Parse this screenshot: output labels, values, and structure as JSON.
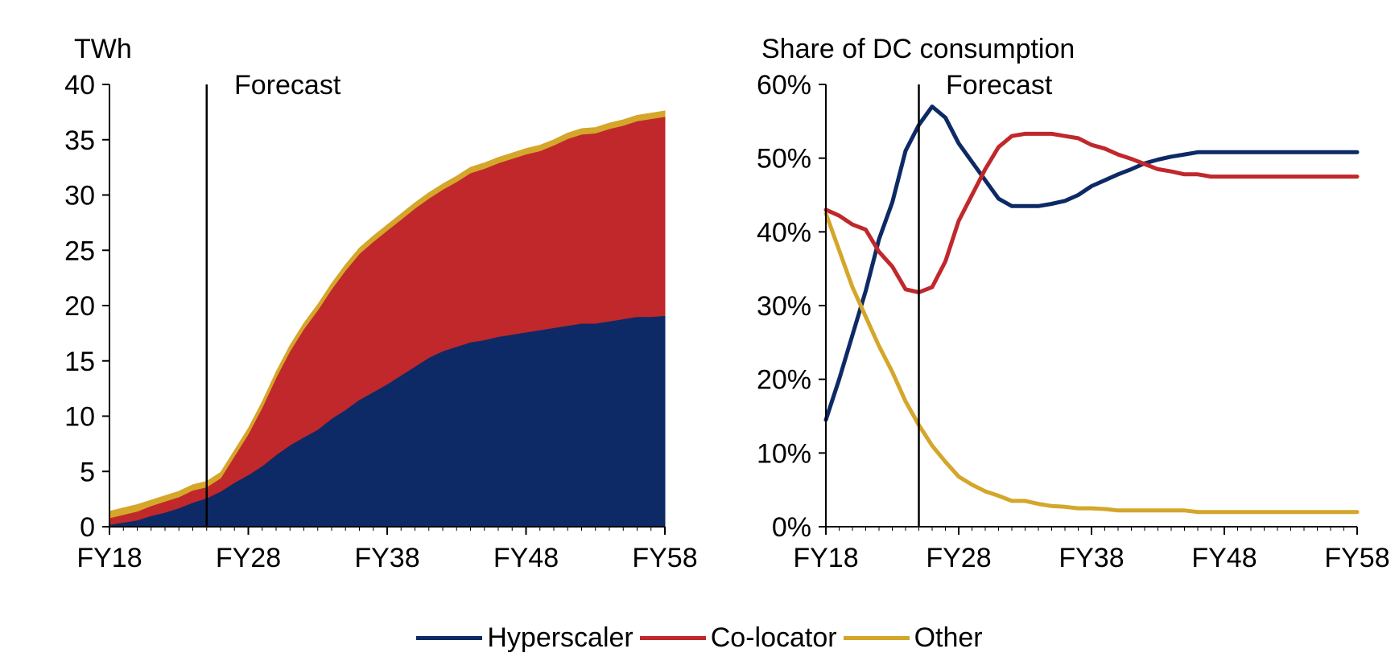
{
  "legend": [
    {
      "label": "Hyperscaler",
      "color": "#0d2a66"
    },
    {
      "label": "Co-locator",
      "color": "#c0282b"
    },
    {
      "label": "Other",
      "color": "#d4a62a"
    }
  ],
  "chart_data": [
    {
      "type": "area",
      "stacked": true,
      "ylabel": "TWh",
      "ylim": [
        0,
        40
      ],
      "yticks": [
        "0",
        "5",
        "10",
        "15",
        "20",
        "25",
        "30",
        "35",
        "40"
      ],
      "xticks": [
        "FY18",
        "FY28",
        "FY38",
        "FY48",
        "FY58"
      ],
      "forecast_label": "Forecast",
      "forecast_year": 25,
      "x_years": [
        18,
        19,
        20,
        21,
        22,
        23,
        24,
        25,
        26,
        27,
        28,
        29,
        30,
        31,
        32,
        33,
        34,
        35,
        36,
        37,
        38,
        39,
        40,
        41,
        42,
        43,
        44,
        45,
        46,
        47,
        48,
        49,
        50,
        51,
        52,
        53,
        54,
        55,
        56,
        57,
        58
      ],
      "series": [
        {
          "name": "Hyperscaler",
          "color": "#0d2a66",
          "values": [
            0.2,
            0.4,
            0.6,
            1.0,
            1.3,
            1.7,
            2.2,
            2.6,
            3.2,
            4.0,
            4.7,
            5.5,
            6.5,
            7.4,
            8.1,
            8.8,
            9.8,
            10.6,
            11.5,
            12.2,
            12.9,
            13.7,
            14.5,
            15.3,
            15.9,
            16.3,
            16.7,
            16.9,
            17.2,
            17.4,
            17.6,
            17.8,
            18.0,
            18.2,
            18.4,
            18.4,
            18.6,
            18.8,
            19.0,
            19.0,
            19.1
          ]
        },
        {
          "name": "Co-locator",
          "color": "#c0282b",
          "values": [
            0.6,
            0.7,
            0.8,
            0.9,
            1.0,
            1.0,
            1.1,
            1.0,
            1.2,
            2.4,
            3.7,
            5.3,
            7.0,
            8.5,
            9.8,
            10.8,
            11.7,
            12.6,
            13.2,
            13.6,
            13.9,
            14.1,
            14.3,
            14.4,
            14.6,
            14.9,
            15.3,
            15.5,
            15.7,
            15.9,
            16.1,
            16.2,
            16.5,
            16.9,
            17.1,
            17.2,
            17.4,
            17.5,
            17.7,
            17.9,
            18.0
          ]
        },
        {
          "name": "Other",
          "color": "#d4a62a",
          "values": [
            0.6,
            0.6,
            0.6,
            0.5,
            0.5,
            0.5,
            0.5,
            0.5,
            0.5,
            0.5,
            0.5,
            0.5,
            0.5,
            0.5,
            0.5,
            0.5,
            0.5,
            0.5,
            0.5,
            0.5,
            0.5,
            0.5,
            0.5,
            0.5,
            0.5,
            0.5,
            0.5,
            0.5,
            0.5,
            0.5,
            0.5,
            0.5,
            0.5,
            0.5,
            0.5,
            0.5,
            0.5,
            0.5,
            0.5,
            0.5,
            0.5
          ]
        }
      ]
    },
    {
      "type": "line",
      "ylabel": "Share of DC consumption",
      "ylim": [
        0,
        60
      ],
      "yticks": [
        "0%",
        "10%",
        "20%",
        "30%",
        "40%",
        "50%",
        "60%"
      ],
      "xticks": [
        "FY18",
        "FY28",
        "FY38",
        "FY48",
        "FY58"
      ],
      "forecast_label": "Forecast",
      "forecast_year": 25,
      "x_years": [
        18,
        19,
        20,
        21,
        22,
        23,
        24,
        25,
        26,
        27,
        28,
        29,
        30,
        31,
        32,
        33,
        34,
        35,
        36,
        37,
        38,
        39,
        40,
        41,
        42,
        43,
        44,
        45,
        46,
        47,
        48,
        49,
        50,
        51,
        52,
        53,
        54,
        55,
        56,
        57,
        58
      ],
      "series": [
        {
          "name": "Hyperscaler",
          "color": "#0d2a66",
          "values": [
            14.5,
            20,
            26,
            32,
            39,
            44,
            51,
            54.5,
            57,
            55.5,
            52,
            49.5,
            47,
            44.5,
            43.5,
            43.5,
            43.5,
            43.8,
            44.2,
            45,
            46.2,
            47,
            47.8,
            48.5,
            49.3,
            49.8,
            50.2,
            50.5,
            50.8,
            50.8,
            50.8,
            50.8,
            50.8,
            50.8,
            50.8,
            50.8,
            50.8,
            50.8,
            50.8,
            50.8,
            50.8
          ]
        },
        {
          "name": "Co-locator",
          "color": "#c0282b",
          "values": [
            43,
            42.2,
            41,
            40.3,
            37.3,
            35.3,
            32.2,
            31.8,
            32.5,
            36,
            41.5,
            45,
            48.5,
            51.5,
            53,
            53.3,
            53.3,
            53.3,
            53,
            52.7,
            51.8,
            51.3,
            50.5,
            49.9,
            49.2,
            48.5,
            48.2,
            47.8,
            47.8,
            47.5,
            47.5,
            47.5,
            47.5,
            47.5,
            47.5,
            47.5,
            47.5,
            47.5,
            47.5,
            47.5,
            47.5
          ]
        },
        {
          "name": "Other",
          "color": "#d4a62a",
          "values": [
            42.5,
            37.5,
            32.5,
            28.5,
            24.5,
            21,
            17,
            13.8,
            11,
            8.8,
            6.8,
            5.7,
            4.8,
            4.2,
            3.5,
            3.5,
            3.1,
            2.8,
            2.7,
            2.5,
            2.5,
            2.4,
            2.2,
            2.2,
            2.2,
            2.2,
            2.2,
            2.2,
            2.0,
            2.0,
            2.0,
            2.0,
            2.0,
            2.0,
            2.0,
            2.0,
            2.0,
            2.0,
            2.0,
            2.0,
            2.0
          ]
        }
      ]
    }
  ]
}
